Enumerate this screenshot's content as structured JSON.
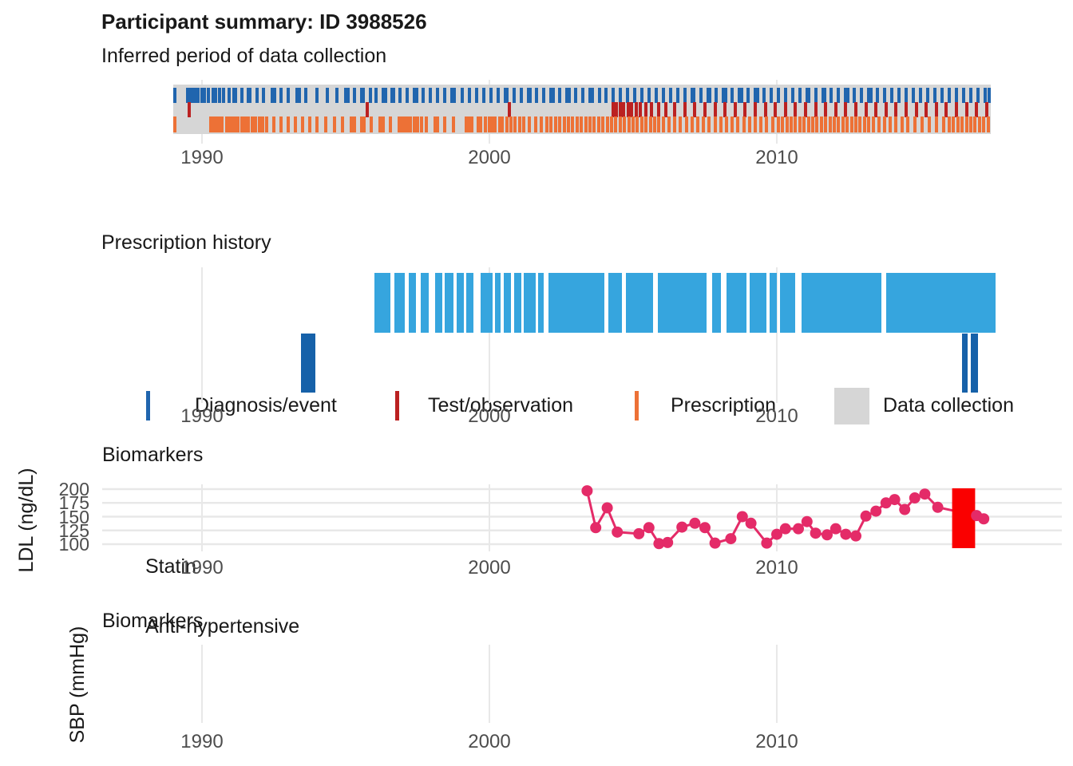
{
  "title": "Participant summary: ID 3988526",
  "colors": {
    "diagnosis": "#2065ae",
    "test": "#bb2121",
    "prescription": "#ed7136",
    "collection": "#d6d6d6",
    "statin": "#36a5de",
    "antihypertensive": "#1661a9",
    "ldl_line": "#e42b68",
    "highlight": "#fa0000",
    "gridline": "#e8e8e8",
    "axis_text": "#4d4d4d"
  },
  "legend": {
    "items": [
      {
        "label": "Diagnosis/event",
        "key": "tick",
        "color": "#2065ae"
      },
      {
        "label": "Test/observation",
        "key": "tick",
        "color": "#bb2121"
      },
      {
        "label": "Prescription",
        "key": "tick",
        "color": "#ed7136"
      },
      {
        "label": "Data collection",
        "key": "square",
        "color": "#d6d6d6"
      }
    ]
  },
  "chart_data": [
    {
      "id": "collection_timeline",
      "type": "event-timeline",
      "title": "Inferred period of data collection",
      "x_ticks": [
        1990,
        2000,
        2010
      ],
      "x_range": [
        1988.6,
        2018.2
      ],
      "collection_period": [
        1989.0,
        2017.45
      ],
      "series": [
        {
          "name": "Diagnosis/event",
          "years": [
            1989.05,
            1989.5,
            1989.58,
            1989.66,
            1989.78,
            1989.86,
            1990.0,
            1990.08,
            1990.22,
            1990.4,
            1990.48,
            1990.62,
            1990.75,
            1990.95,
            1991.1,
            1991.18,
            1991.38,
            1991.6,
            1991.68,
            1991.92,
            1992.15,
            1992.45,
            1992.52,
            1992.75,
            1993.0,
            1993.3,
            1993.38,
            1993.62,
            1994.0,
            1994.35,
            1994.7,
            1995.0,
            1995.08,
            1995.3,
            1995.55,
            1995.62,
            1995.85,
            1996.05,
            1996.3,
            1996.38,
            1996.6,
            1996.68,
            1996.9,
            1997.15,
            1997.4,
            1997.48,
            1997.7,
            1997.95,
            1998.2,
            1998.45,
            1998.7,
            1998.78,
            1999.05,
            1999.3,
            1999.55,
            1999.8,
            2000.05,
            2000.3,
            2000.55,
            2000.62,
            2000.85,
            2001.1,
            2001.35,
            2001.42,
            2001.65,
            2001.9,
            2002.15,
            2002.22,
            2002.45,
            2002.7,
            2002.78,
            2003.0,
            2003.25,
            2003.5,
            2003.58,
            2003.82,
            2004.05,
            2004.3,
            2004.55,
            2004.8,
            2005.05,
            2005.3,
            2005.55,
            2005.8,
            2006.05,
            2006.3,
            2006.55,
            2006.8,
            2007.05,
            2007.12,
            2007.35,
            2007.6,
            2007.68,
            2007.9,
            2008.15,
            2008.22,
            2008.45,
            2008.7,
            2008.78,
            2009.0,
            2009.25,
            2009.32,
            2009.55,
            2009.8,
            2010.05,
            2010.3,
            2010.55,
            2010.8,
            2011.05,
            2011.12,
            2011.35,
            2011.6,
            2011.68,
            2011.9,
            2012.15,
            2012.4,
            2012.48,
            2012.7,
            2012.95,
            2013.2,
            2013.28,
            2013.5,
            2013.75,
            2014.0,
            2014.25,
            2014.5,
            2014.75,
            2015.0,
            2015.25,
            2015.5,
            2015.75,
            2016.0,
            2016.25,
            2016.5,
            2016.75,
            2017.0,
            2017.25,
            2017.4
          ]
        },
        {
          "name": "Test/observation",
          "years": [
            1989.55,
            1995.75,
            2000.7,
            2004.3,
            2004.42,
            2004.55,
            2004.68,
            2004.82,
            2004.95,
            2005.1,
            2005.25,
            2005.45,
            2005.65,
            2005.9,
            2006.15,
            2006.45,
            2006.8,
            2007.15,
            2007.5,
            2007.85,
            2008.2,
            2008.55,
            2008.9,
            2009.25,
            2009.6,
            2009.95,
            2010.3,
            2010.65,
            2011.0,
            2011.35,
            2011.7,
            2012.05,
            2012.4,
            2012.75,
            2013.1,
            2013.45,
            2013.8,
            2014.15,
            2014.5,
            2014.85,
            2015.2,
            2015.55,
            2015.9,
            2016.25,
            2016.6,
            2016.95,
            2017.3
          ]
        },
        {
          "name": "Prescription",
          "years": [
            1989.05,
            1990.3,
            1990.4,
            1990.5,
            1990.6,
            1990.7,
            1990.85,
            1990.95,
            1991.05,
            1991.15,
            1991.25,
            1991.4,
            1991.5,
            1991.6,
            1991.75,
            1991.85,
            1992.0,
            1992.1,
            1992.25,
            1992.5,
            1992.75,
            1993.0,
            1993.25,
            1993.5,
            1993.75,
            1994.0,
            1994.3,
            1994.6,
            1994.9,
            1995.2,
            1995.3,
            1995.55,
            1995.65,
            1995.9,
            1996.2,
            1996.3,
            1996.55,
            1996.85,
            1996.95,
            1997.05,
            1997.15,
            1997.25,
            1997.4,
            1997.5,
            1997.65,
            1997.8,
            1998.1,
            1998.2,
            1998.45,
            1998.75,
            1999.2,
            1999.3,
            1999.4,
            1999.6,
            1999.7,
            1999.85,
            2000.0,
            2000.1,
            2000.2,
            2000.35,
            2000.45,
            2000.6,
            2000.75,
            2000.9,
            2001.05,
            2001.2,
            2001.4,
            2001.6,
            2001.8,
            2002.0,
            2002.15,
            2002.3,
            2002.45,
            2002.6,
            2002.75,
            2002.9,
            2003.05,
            2003.2,
            2003.35,
            2003.5,
            2003.65,
            2003.8,
            2003.95,
            2004.1,
            2004.25,
            2004.4,
            2004.55,
            2004.7,
            2004.85,
            2005.0,
            2005.15,
            2005.3,
            2005.45,
            2005.6,
            2005.75,
            2005.9,
            2006.05,
            2006.25,
            2006.45,
            2006.65,
            2006.85,
            2007.05,
            2007.25,
            2007.45,
            2007.65,
            2007.85,
            2008.05,
            2008.25,
            2008.45,
            2008.65,
            2008.85,
            2009.05,
            2009.25,
            2009.45,
            2009.65,
            2009.85,
            2010.05,
            2010.2,
            2010.35,
            2010.5,
            2010.65,
            2010.8,
            2010.95,
            2011.1,
            2011.25,
            2011.4,
            2011.55,
            2011.7,
            2011.85,
            2012.0,
            2012.15,
            2012.3,
            2012.45,
            2012.6,
            2012.75,
            2012.9,
            2013.05,
            2013.2,
            2013.35,
            2013.55,
            2013.75,
            2013.95,
            2014.15,
            2014.35,
            2014.55,
            2014.8,
            2015.05,
            2015.3,
            2015.55,
            2015.8,
            2016.0,
            2016.15,
            2016.3,
            2016.45,
            2016.6,
            2016.75,
            2016.9,
            2017.05,
            2017.2,
            2017.35
          ]
        }
      ]
    },
    {
      "id": "prescription_history",
      "type": "interval-timeline",
      "title": "Prescription history",
      "x_ticks": [
        1990,
        2000,
        2010
      ],
      "rows": [
        {
          "label": "Statin",
          "color": "#36a5de",
          "segments": [
            [
              1996.0,
              1996.55
            ],
            [
              1996.7,
              1997.05
            ],
            [
              1997.2,
              1997.45
            ],
            [
              1997.6,
              1997.9
            ],
            [
              1998.1,
              1998.35
            ],
            [
              1998.45,
              1998.75
            ],
            [
              1998.85,
              1999.1
            ],
            [
              1999.2,
              1999.45
            ],
            [
              1999.7,
              2000.1
            ],
            [
              2000.2,
              2000.4
            ],
            [
              2000.5,
              2000.75
            ],
            [
              2000.85,
              2001.1
            ],
            [
              2001.2,
              2001.6
            ],
            [
              2001.7,
              2001.9
            ],
            [
              2002.05,
              2004.0
            ],
            [
              2004.15,
              2004.6
            ],
            [
              2004.75,
              2005.7
            ],
            [
              2005.85,
              2007.55
            ],
            [
              2007.75,
              2008.05
            ],
            [
              2008.25,
              2008.95
            ],
            [
              2009.05,
              2009.65
            ],
            [
              2009.75,
              2010.0
            ],
            [
              2010.1,
              2010.65
            ],
            [
              2010.85,
              2013.65
            ],
            [
              2013.8,
              2017.6
            ]
          ]
        },
        {
          "label": "Anti-hypertensive",
          "color": "#1661a9",
          "segments": [
            [
              1993.45,
              1993.95
            ],
            [
              2016.45,
              2016.65
            ],
            [
              2016.75,
              2017.0
            ]
          ]
        }
      ]
    },
    {
      "id": "ldl",
      "type": "line",
      "title": "Biomarkers",
      "ylabel": "LDL (ng/dL)",
      "y_ticks": [
        200,
        175,
        150,
        125,
        100
      ],
      "ylim": [
        92,
        205
      ],
      "x_ticks": [
        1990,
        2000,
        2010
      ],
      "points": [
        [
          2003.4,
          197
        ],
        [
          2003.7,
          130
        ],
        [
          2004.1,
          166
        ],
        [
          2004.45,
          122
        ],
        [
          2005.2,
          119
        ],
        [
          2005.55,
          130
        ],
        [
          2005.9,
          101
        ],
        [
          2006.2,
          103
        ],
        [
          2006.7,
          131
        ],
        [
          2007.15,
          138
        ],
        [
          2007.5,
          130
        ],
        [
          2007.85,
          102
        ],
        [
          2008.4,
          110
        ],
        [
          2008.8,
          150
        ],
        [
          2009.1,
          138
        ],
        [
          2009.65,
          102
        ],
        [
          2010.0,
          118
        ],
        [
          2010.3,
          128
        ],
        [
          2010.75,
          128
        ],
        [
          2011.05,
          141
        ],
        [
          2011.35,
          120
        ],
        [
          2011.75,
          117
        ],
        [
          2012.05,
          128
        ],
        [
          2012.4,
          118
        ],
        [
          2012.75,
          115
        ],
        [
          2013.1,
          151
        ],
        [
          2013.45,
          160
        ],
        [
          2013.8,
          175
        ],
        [
          2014.1,
          181
        ],
        [
          2014.45,
          163
        ],
        [
          2014.8,
          184
        ],
        [
          2015.15,
          191
        ],
        [
          2015.6,
          167
        ],
        [
          2016.95,
          152
        ],
        [
          2017.2,
          146
        ]
      ],
      "highlight_rect": {
        "x": [
          2016.1,
          2016.9
        ],
        "y": "full",
        "color": "#fa0000"
      }
    },
    {
      "id": "sbp",
      "type": "line",
      "title": "Biomarkers",
      "ylabel": "SBP (mmHg)",
      "x_ticks": [
        1990,
        2000,
        2010
      ],
      "points": []
    }
  ]
}
